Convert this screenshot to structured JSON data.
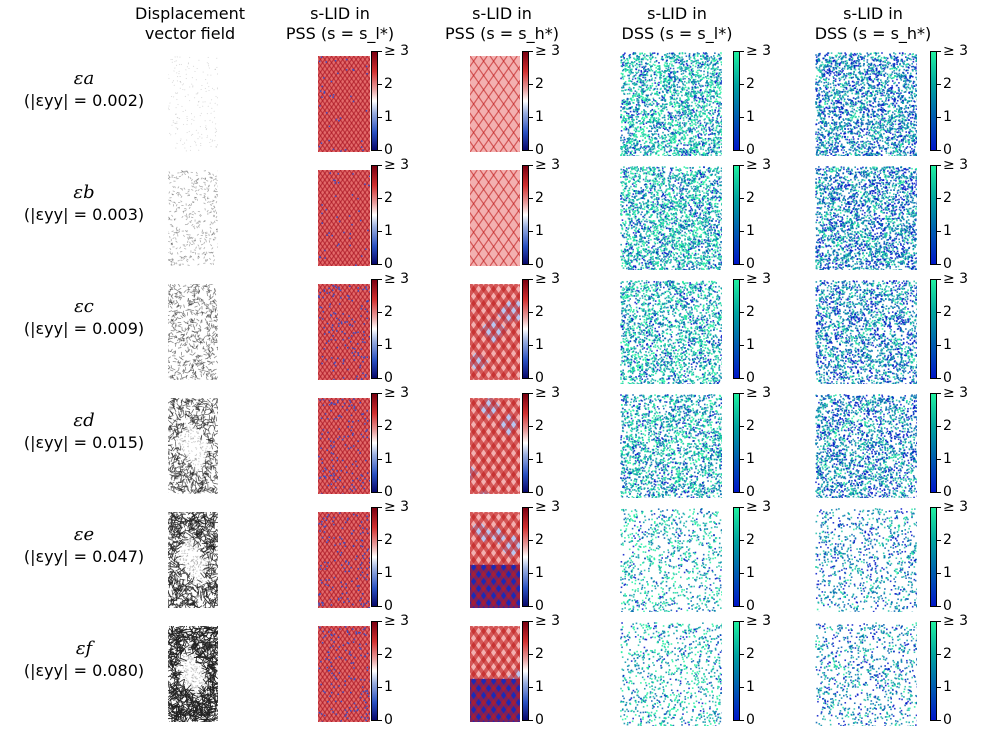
{
  "columns": [
    {
      "line1": "Displacement",
      "line2": "vector field"
    },
    {
      "line1": "s-LID in",
      "line2": "PSS (s = s_l*)"
    },
    {
      "line1": "s-LID in",
      "line2": "PSS (s = s_h*)"
    },
    {
      "line1": "s-LID in",
      "line2": "DSS (s = s_l*)"
    },
    {
      "line1": "s-LID in",
      "line2": "DSS (s = s_h*)"
    }
  ],
  "rows": [
    {
      "eps": "εa",
      "strain": "(|εyy| = 0.002)"
    },
    {
      "eps": "εb",
      "strain": "(|εyy| = 0.003)"
    },
    {
      "eps": "εc",
      "strain": "(|εyy| = 0.009)"
    },
    {
      "eps": "εd",
      "strain": "(|εyy| = 0.015)"
    },
    {
      "eps": "εe",
      "strain": "(|εyy| = 0.047)"
    },
    {
      "eps": "εf",
      "strain": "(|εyy| = 0.080)"
    }
  ],
  "colorbar_ticks": [
    "≥ 3",
    "2",
    "1",
    "0"
  ],
  "colors": {
    "pss_cmap": [
      "#08086a",
      "#ffffff",
      "#7a0010"
    ],
    "dss_cmap": [
      "#0016c8",
      "#20f0a0"
    ],
    "displacement": "#222222"
  }
}
